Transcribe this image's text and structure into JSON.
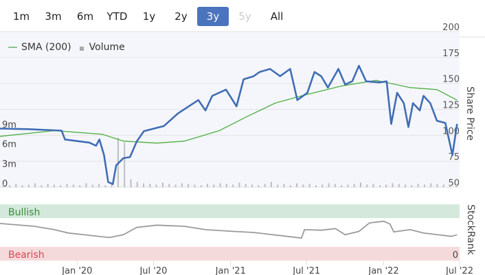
{
  "range_buttons": [
    {
      "label": "1m",
      "state": "normal"
    },
    {
      "label": "3m",
      "state": "normal"
    },
    {
      "label": "6m",
      "state": "normal"
    },
    {
      "label": "YTD",
      "state": "normal"
    },
    {
      "label": "1y",
      "state": "normal"
    },
    {
      "label": "2y",
      "state": "normal"
    },
    {
      "label": "3y",
      "state": "active"
    },
    {
      "label": "5y",
      "state": "disabled"
    },
    {
      "label": "All",
      "state": "normal"
    }
  ],
  "legend": {
    "sma": "SMA (200)",
    "volume": "Volume"
  },
  "colors": {
    "price": "#3f6db5",
    "sma": "#4caf3f",
    "volume": "#bdbdbd",
    "stockrank": "#9a9a9a",
    "bullish_bg": "#d4e9dc",
    "bullish_text": "#3b8a3b",
    "bearish_bg": "#f5dadb",
    "bearish_text": "#d94455",
    "accent": "#4a74bd"
  },
  "chart_data": {
    "type": "line",
    "x_range": [
      "2019-07-01",
      "2022-07-01"
    ],
    "x_ticks": [
      {
        "date": "2020-01-01",
        "label": "Jan '20"
      },
      {
        "date": "2020-07-01",
        "label": "Jul '20"
      },
      {
        "date": "2021-01-01",
        "label": "Jan '21"
      },
      {
        "date": "2021-07-01",
        "label": "Jul '21"
      },
      {
        "date": "2022-01-01",
        "label": "Jan '22"
      },
      {
        "date": "2022-07-01",
        "label": "Jul '22"
      }
    ],
    "price_axis": {
      "label": "Share Price",
      "ylim": [
        50,
        200
      ],
      "ticks": [
        200,
        175,
        150,
        125,
        100,
        75,
        50
      ]
    },
    "volume_axis": {
      "ticks": [
        {
          "v": 9,
          "label": "9m"
        },
        {
          "v": 6,
          "label": "6m"
        },
        {
          "v": 3,
          "label": "3m"
        },
        {
          "v": 0,
          "label": "0"
        }
      ],
      "ylim": [
        0,
        12
      ]
    },
    "stockrank_axis": {
      "label": "StockRank",
      "ylim": [
        0,
        100
      ],
      "tick_label": "0",
      "bullish_label": "Bullish",
      "bearish_label": "Bearish"
    },
    "price": [
      [
        "2019-07-01",
        106.5
      ],
      [
        "2019-09-05",
        106
      ],
      [
        "2019-11-25",
        104.5
      ],
      [
        "2019-12-03",
        96
      ],
      [
        "2020-01-30",
        93
      ],
      [
        "2020-02-15",
        90
      ],
      [
        "2020-02-23",
        96
      ],
      [
        "2020-03-05",
        81
      ],
      [
        "2020-03-15",
        55
      ],
      [
        "2020-03-26",
        53
      ],
      [
        "2020-04-03",
        71
      ],
      [
        "2020-04-20",
        78
      ],
      [
        "2020-05-06",
        79
      ],
      [
        "2020-05-22",
        94
      ],
      [
        "2020-06-08",
        104
      ],
      [
        "2020-07-26",
        109
      ],
      [
        "2020-08-28",
        121
      ],
      [
        "2020-10-16",
        134
      ],
      [
        "2020-11-02",
        124
      ],
      [
        "2020-11-18",
        138
      ],
      [
        "2020-12-21",
        144
      ],
      [
        "2021-01-15",
        128
      ],
      [
        "2021-02-01",
        154
      ],
      [
        "2021-02-25",
        157
      ],
      [
        "2021-03-11",
        161
      ],
      [
        "2021-04-05",
        164
      ],
      [
        "2021-04-29",
        157
      ],
      [
        "2021-05-23",
        164
      ],
      [
        "2021-06-09",
        134
      ],
      [
        "2021-07-03",
        141
      ],
      [
        "2021-07-20",
        161
      ],
      [
        "2021-08-05",
        157
      ],
      [
        "2021-08-21",
        146
      ],
      [
        "2021-09-15",
        164
      ],
      [
        "2021-10-01",
        149
      ],
      [
        "2021-10-18",
        152
      ],
      [
        "2021-11-03",
        167
      ],
      [
        "2021-11-20",
        152
      ],
      [
        "2021-12-22",
        151
      ],
      [
        "2022-01-08",
        152
      ],
      [
        "2022-01-19",
        111
      ],
      [
        "2022-02-02",
        141
      ],
      [
        "2022-02-18",
        131
      ],
      [
        "2022-03-01",
        108
      ],
      [
        "2022-03-12",
        131
      ],
      [
        "2022-03-28",
        124
      ],
      [
        "2022-04-06",
        138
      ],
      [
        "2022-04-22",
        131
      ],
      [
        "2022-05-08",
        114
      ],
      [
        "2022-05-28",
        112
      ],
      [
        "2022-06-14",
        81
      ],
      [
        "2022-06-25",
        111
      ]
    ],
    "sma": [
      [
        "2019-07-01",
        99
      ],
      [
        "2019-11-08",
        104.5
      ],
      [
        "2020-03-01",
        101
      ],
      [
        "2020-04-20",
        94.5
      ],
      [
        "2020-07-09",
        92.5
      ],
      [
        "2020-09-13",
        94.5
      ],
      [
        "2020-12-05",
        104.5
      ],
      [
        "2021-02-09",
        118
      ],
      [
        "2021-04-17",
        131
      ],
      [
        "2021-06-19",
        138
      ],
      [
        "2021-09-23",
        147.6
      ],
      [
        "2021-12-14",
        153
      ],
      [
        "2022-03-05",
        146
      ],
      [
        "2022-05-08",
        144
      ],
      [
        "2022-06-25",
        134
      ]
    ],
    "volume": [
      0.4,
      0.3,
      0.5,
      0.3,
      0.4,
      0.6,
      0.3,
      0.5,
      0.4,
      0.3,
      0.5,
      0.4,
      0.3,
      0.6,
      0.4,
      0.5,
      0.3,
      0.4,
      7.5,
      6.8,
      1.2,
      0.8,
      0.6,
      0.5,
      0.4,
      0.7,
      0.5,
      0.4,
      0.6,
      0.5,
      0.4,
      0.3,
      0.5,
      0.4,
      0.6,
      0.5,
      0.4,
      0.7,
      0.5,
      0.4,
      0.3,
      0.5,
      0.8,
      0.4,
      0.5,
      0.3,
      0.6,
      0.4,
      0.5,
      0.3,
      0.4,
      0.6,
      0.5,
      0.3,
      0.4,
      0.5,
      0.7,
      0.4,
      0.5,
      0.3,
      0.4,
      0.6,
      0.5,
      0.4,
      0.3,
      0.5,
      0.4,
      0.6,
      0.5,
      0.4,
      0.3,
      0.5
    ],
    "stockrank": [
      [
        "2019-07-01",
        66
      ],
      [
        "2019-09-21",
        61
      ],
      [
        "2019-11-08",
        55
      ],
      [
        "2019-12-11",
        49
      ],
      [
        "2020-01-30",
        45
      ],
      [
        "2020-03-18",
        41
      ],
      [
        "2020-04-20",
        46
      ],
      [
        "2020-05-22",
        59
      ],
      [
        "2020-07-09",
        63
      ],
      [
        "2020-09-13",
        61
      ],
      [
        "2020-11-02",
        55
      ],
      [
        "2021-01-07",
        52
      ],
      [
        "2021-02-25",
        50
      ],
      [
        "2021-05-16",
        43
      ],
      [
        "2021-06-19",
        40
      ],
      [
        "2021-06-26",
        55
      ],
      [
        "2021-08-05",
        54
      ],
      [
        "2021-09-08",
        57
      ],
      [
        "2021-10-01",
        46
      ],
      [
        "2021-11-03",
        52
      ],
      [
        "2021-11-28",
        67
      ],
      [
        "2022-01-01",
        70
      ],
      [
        "2022-01-16",
        65
      ],
      [
        "2022-01-25",
        51
      ],
      [
        "2022-03-05",
        55
      ],
      [
        "2022-04-06",
        49
      ],
      [
        "2022-06-12",
        43
      ],
      [
        "2022-06-25",
        46
      ]
    ]
  }
}
